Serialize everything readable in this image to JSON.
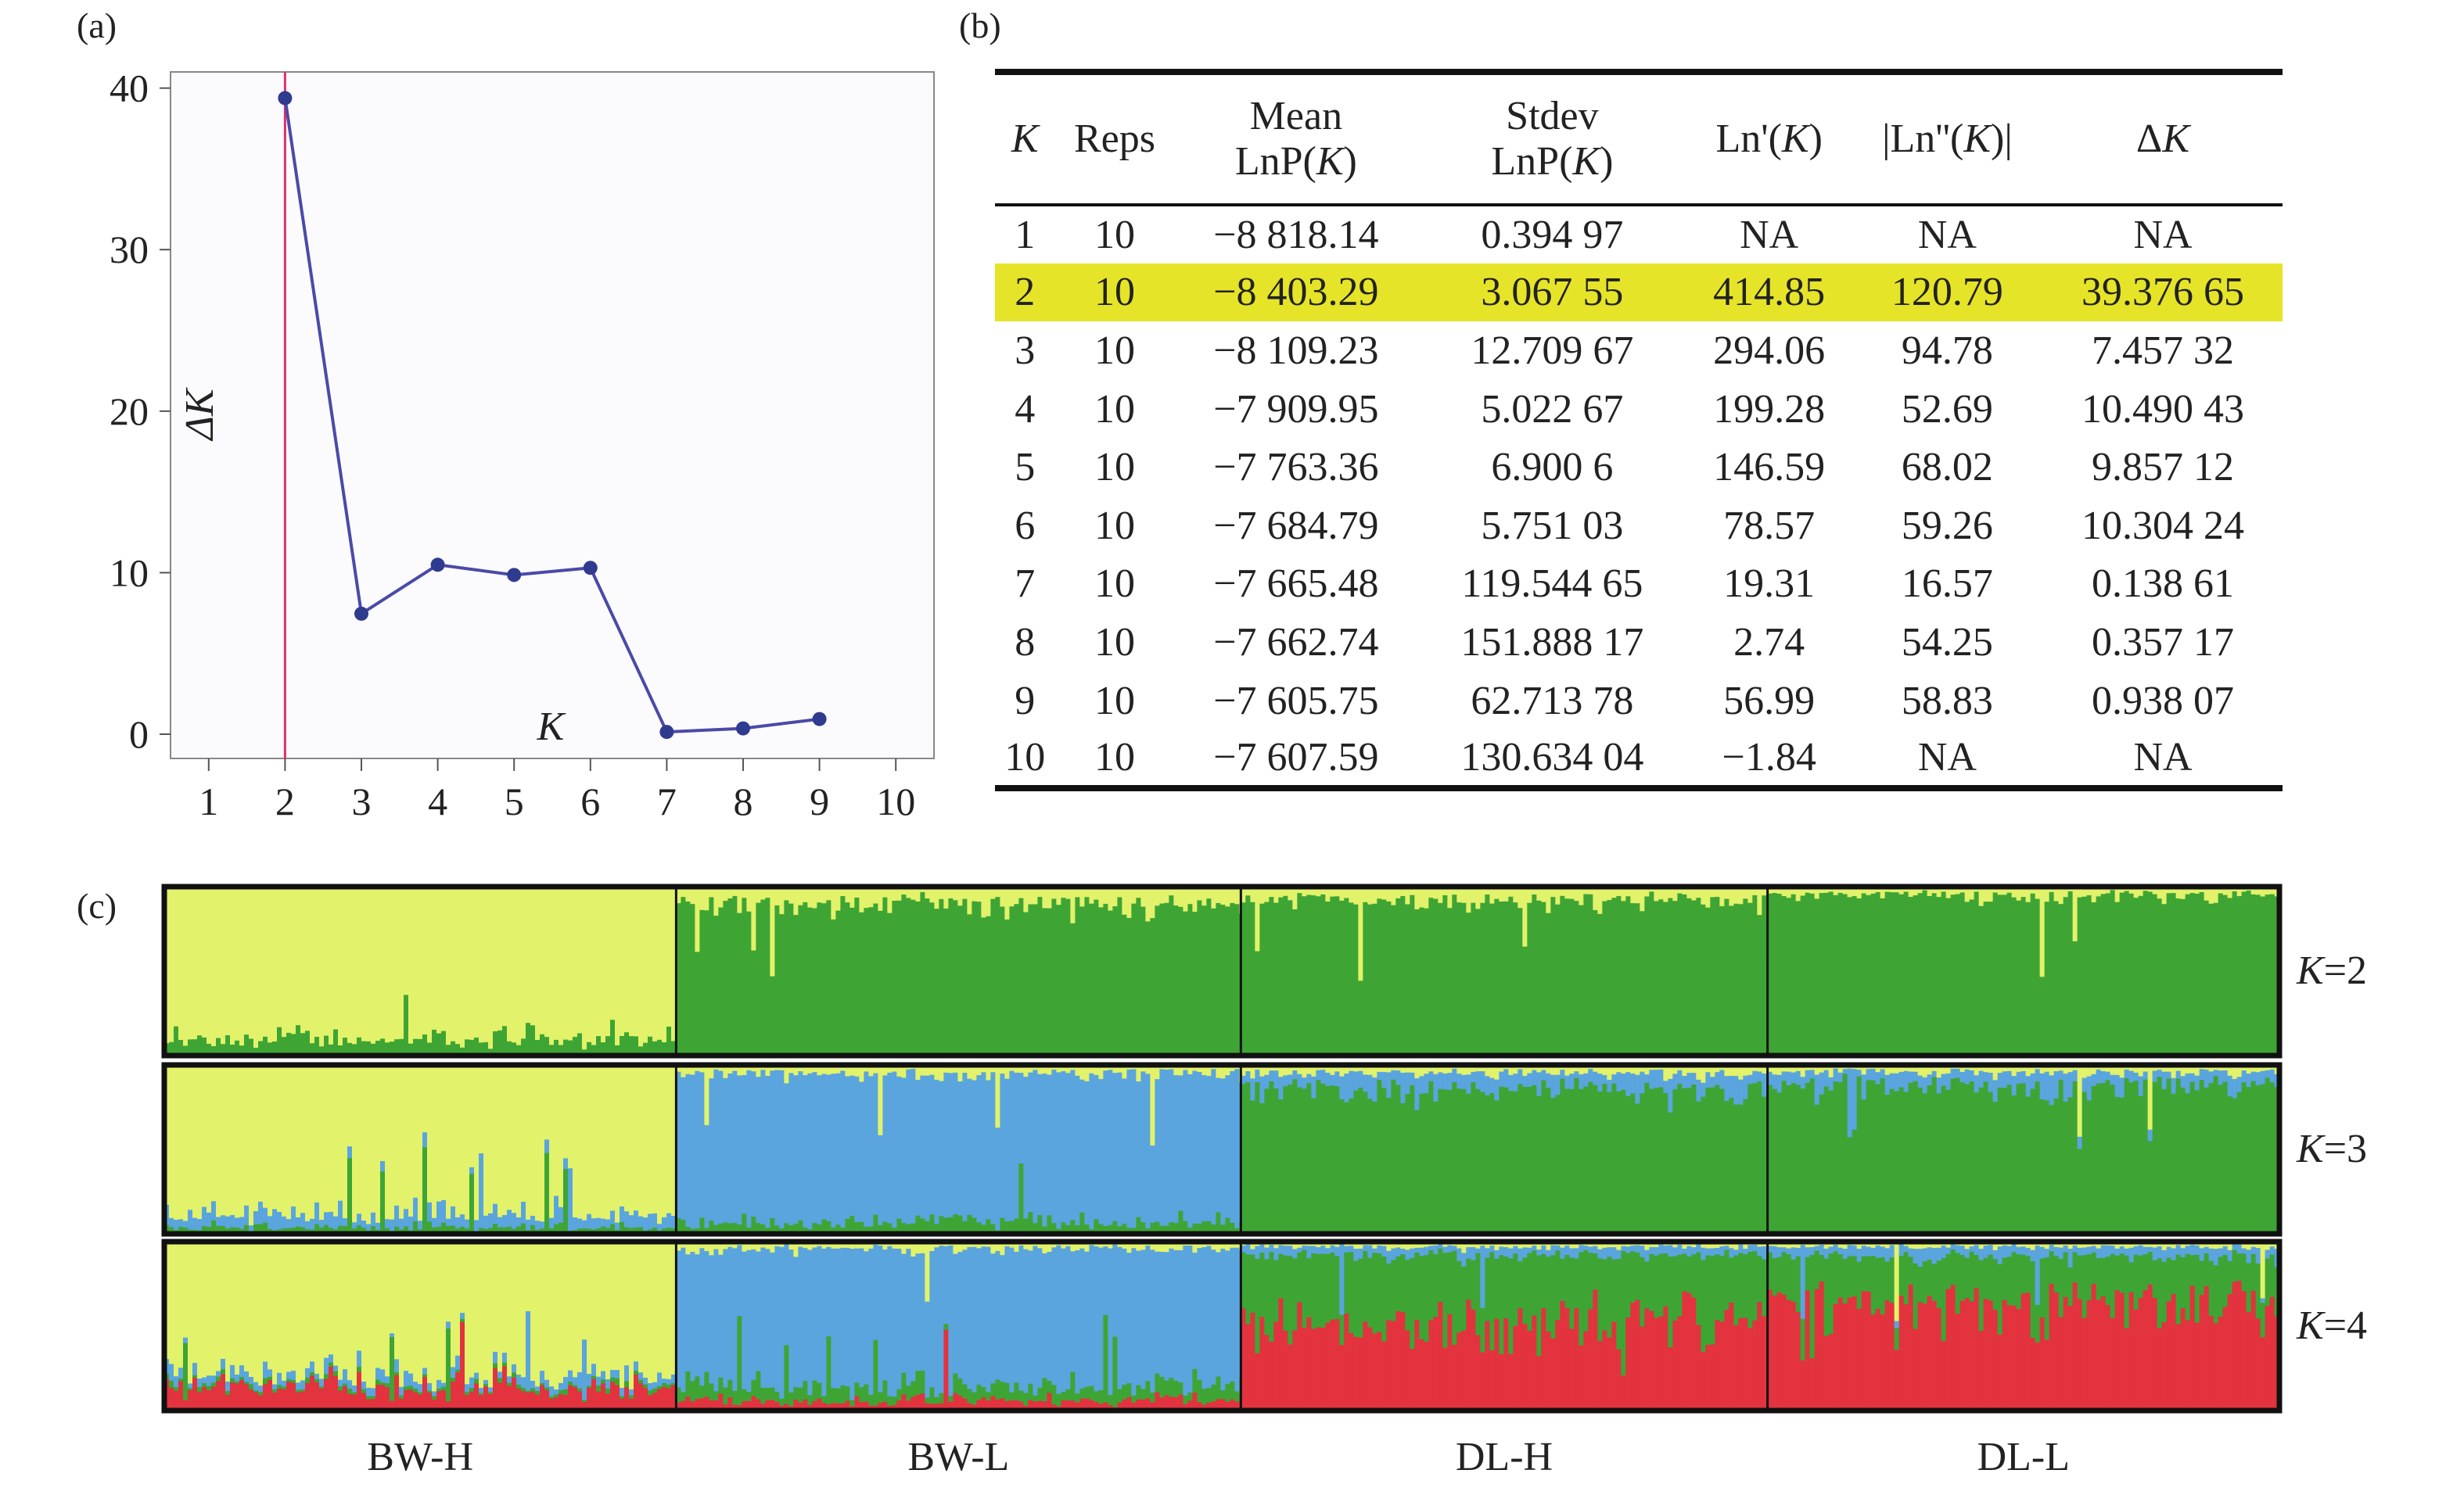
{
  "panels": {
    "a_label": "(a)",
    "b_label": "(b)",
    "c_label": "(c)"
  },
  "chart_data": [
    {
      "type": "line",
      "x": [
        2,
        3,
        4,
        5,
        6,
        7,
        8,
        9
      ],
      "y": [
        39.38,
        7.46,
        10.49,
        9.86,
        10.3,
        0.14,
        0.36,
        0.94
      ],
      "xticks": [
        "1",
        "2",
        "3",
        "4",
        "5",
        "6",
        "7",
        "8",
        "9",
        "10"
      ],
      "yticks": [
        "0",
        "10",
        "20",
        "30",
        "40"
      ],
      "xlim": [
        0.5,
        10.5
      ],
      "ylim": [
        -1.5,
        41
      ],
      "ylabel": "ΔK",
      "xlabel": "K",
      "marker_line_x": 2,
      "colors": {
        "line": "#4a4aa8",
        "marker": "#2f3b8f",
        "vline": "#e0306a",
        "plot_bg": "#fbfbfd"
      }
    },
    {
      "type": "table",
      "headers": [
        [
          "K"
        ],
        [
          "Reps"
        ],
        [
          "Mean",
          "LnP(K)"
        ],
        [
          "Stdev",
          "LnP(K)"
        ],
        [
          "Ln'(K)"
        ],
        [
          "|Ln''(K)|"
        ],
        [
          "ΔK"
        ]
      ],
      "rows": [
        [
          "1",
          "10",
          "−8 818.14",
          "0.394 97",
          "NA",
          "NA",
          "NA"
        ],
        [
          "2",
          "10",
          "−8 403.29",
          "3.067 55",
          "414.85",
          "120.79",
          "39.376 65"
        ],
        [
          "3",
          "10",
          "−8 109.23",
          "12.709 67",
          "294.06",
          "94.78",
          "7.457 32"
        ],
        [
          "4",
          "10",
          "−7 909.95",
          "5.022 67",
          "199.28",
          "52.69",
          "10.490 43"
        ],
        [
          "5",
          "10",
          "−7 763.36",
          "6.900 6",
          "146.59",
          "68.02",
          "9.857 12"
        ],
        [
          "6",
          "10",
          "−7 684.79",
          "5.751 03",
          "78.57",
          "59.26",
          "10.304 24"
        ],
        [
          "7",
          "10",
          "−7 665.48",
          "119.544 65",
          "19.31",
          "16.57",
          "0.138 61"
        ],
        [
          "8",
          "10",
          "−7 662.74",
          "151.888 17",
          "2.74",
          "54.25",
          "0.357 17"
        ],
        [
          "9",
          "10",
          "−7 605.75",
          "62.713 78",
          "56.99",
          "58.83",
          "0.938 07"
        ],
        [
          "10",
          "10",
          "−7 607.59",
          "130.634 04",
          "−1.84",
          "NA",
          "NA"
        ]
      ],
      "highlight_row": 1,
      "highlight_color": "#e6e429"
    },
    {
      "type": "bar",
      "stacked": true,
      "populations": [
        "BW-H",
        "BW-L",
        "DL-H",
        "DL-L"
      ],
      "population_share": [
        0.242,
        0.267,
        0.249,
        0.242
      ],
      "rows": [
        {
          "label": "K=2",
          "colors": [
            "#e2f26a",
            "#3ea534"
          ],
          "mean_composition": [
            [
              0.9,
              0.1
            ],
            [
              0.1,
              0.9
            ],
            [
              0.08,
              0.92
            ],
            [
              0.05,
              0.95
            ]
          ]
        },
        {
          "label": "K=3",
          "colors": [
            "#e2f26a",
            "#5aa5de",
            "#3ea534"
          ],
          "mean_composition": [
            [
              0.88,
              0.08,
              0.04
            ],
            [
              0.05,
              0.88,
              0.07
            ],
            [
              0.05,
              0.1,
              0.85
            ],
            [
              0.04,
              0.08,
              0.88
            ]
          ]
        },
        {
          "label": "K=4",
          "colors": [
            "#e2f26a",
            "#5aa5de",
            "#3ea534",
            "#e2333f"
          ],
          "mean_composition": [
            [
              0.8,
              0.05,
              0.02,
              0.13
            ],
            [
              0.04,
              0.82,
              0.08,
              0.06
            ],
            [
              0.03,
              0.05,
              0.4,
              0.52
            ],
            [
              0.03,
              0.06,
              0.3,
              0.61
            ]
          ]
        }
      ]
    }
  ]
}
